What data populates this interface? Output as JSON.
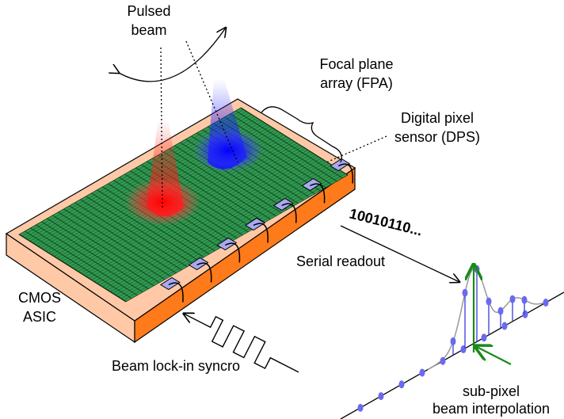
{
  "labels": {
    "pulsed_beam": [
      "Pulsed",
      "beam"
    ],
    "fpa": [
      "Focal plane",
      "array (FPA)"
    ],
    "dps": [
      "Digital pixel",
      "sensor (DPS)"
    ],
    "bits": "10010110...",
    "serial_readout": "Serial readout",
    "cmos_asic": [
      "CMOS",
      "ASIC"
    ],
    "lock_in": "Beam lock-in syncro",
    "interpolation": [
      "sub-pixel",
      "beam interpolation"
    ]
  }
}
